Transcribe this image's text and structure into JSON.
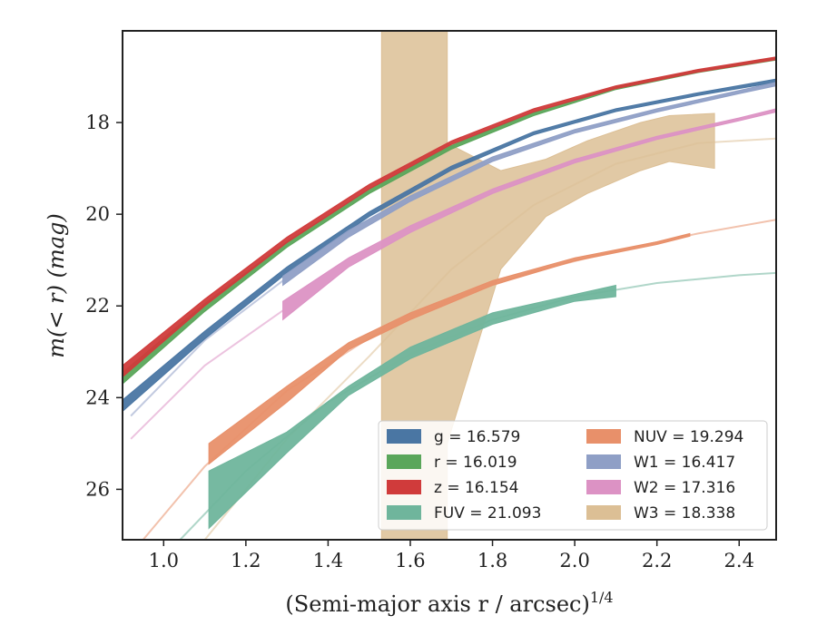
{
  "chart_data": {
    "type": "line",
    "xlabel": "(Semi-major axis r / arcsec)",
    "xlabel_sup": "1/4",
    "ylabel": "m(< r) (mag)",
    "xlim": [
      0.9,
      2.49
    ],
    "ylim": [
      27.1,
      16.0
    ],
    "y_inverted": true,
    "x_ticks": [
      1.0,
      1.2,
      1.4,
      1.6,
      1.8,
      2.0,
      2.2,
      2.4
    ],
    "x_tick_labels": [
      "1.0",
      "1.2",
      "1.4",
      "1.6",
      "1.8",
      "2.0",
      "2.2",
      "2.4"
    ],
    "y_ticks": [
      18,
      20,
      22,
      24,
      26
    ],
    "y_tick_labels": [
      "18",
      "20",
      "22",
      "24",
      "26"
    ],
    "grid": false,
    "legend_position": "lower-right",
    "legend_columns": 2,
    "series": [
      {
        "name": "g = 16.579",
        "color": "#4a76a3",
        "band": {
          "x": [
            0.9,
            1.1,
            1.3,
            1.5,
            1.7,
            1.9,
            2.1,
            2.3,
            2.49
          ],
          "y_top": [
            24.05,
            22.55,
            21.15,
            19.95,
            18.95,
            18.2,
            17.7,
            17.35,
            17.05
          ],
          "y_bottom": [
            24.3,
            22.72,
            21.28,
            20.05,
            19.04,
            18.27,
            17.76,
            17.41,
            17.12
          ]
        }
      },
      {
        "name": "r = 16.019",
        "color": "#5aa65a",
        "band": {
          "x": [
            0.9,
            1.1,
            1.3,
            1.5,
            1.7,
            1.9,
            2.1,
            2.3,
            2.49
          ],
          "y_top": [
            23.45,
            21.95,
            20.6,
            19.45,
            18.5,
            17.78,
            17.22,
            16.85,
            16.58
          ],
          "y_bottom": [
            23.7,
            22.12,
            20.72,
            19.55,
            18.58,
            17.85,
            17.28,
            16.91,
            16.64
          ]
        }
      },
      {
        "name": "z = 16.154",
        "color": "#d03b3b",
        "band": {
          "x": [
            0.9,
            1.1,
            1.3,
            1.5,
            1.7,
            1.9,
            2.1,
            2.3,
            2.49
          ],
          "y_top": [
            23.3,
            21.85,
            20.5,
            19.35,
            18.4,
            17.7,
            17.2,
            16.84,
            16.57
          ],
          "y_bottom": [
            23.55,
            22.0,
            20.62,
            19.45,
            18.48,
            17.77,
            17.26,
            16.9,
            16.63
          ]
        }
      },
      {
        "name": "FUV = 21.093",
        "color": "#6fb59c",
        "band": {
          "x": [
            1.11,
            1.3,
            1.45,
            1.6,
            1.8,
            2.0,
            2.1
          ],
          "y_top": [
            25.6,
            24.75,
            23.75,
            22.9,
            22.15,
            21.75,
            21.55
          ],
          "y_bottom": [
            26.85,
            25.2,
            23.95,
            23.15,
            22.4,
            21.9,
            21.8
          ]
        },
        "fit": {
          "x": [
            1.04,
            1.2,
            1.4,
            1.6,
            1.8,
            2.0,
            2.2,
            2.4,
            2.49
          ],
          "y": [
            27.1,
            25.6,
            24.1,
            23.05,
            22.3,
            21.8,
            21.5,
            21.33,
            21.28
          ]
        }
      },
      {
        "name": "NUV = 19.294",
        "color": "#e8906a",
        "band": {
          "x": [
            1.11,
            1.3,
            1.45,
            1.6,
            1.8,
            2.0,
            2.2,
            2.28
          ],
          "y_top": [
            25.0,
            23.75,
            22.8,
            22.15,
            21.45,
            20.95,
            20.6,
            20.42
          ],
          "y_bottom": [
            25.45,
            24.1,
            22.95,
            22.3,
            21.55,
            21.02,
            20.66,
            20.48
          ]
        },
        "fit": {
          "x": [
            0.95,
            1.1,
            1.3,
            1.5,
            1.7,
            1.9,
            2.1,
            2.3,
            2.49
          ],
          "y": [
            27.1,
            25.5,
            23.85,
            22.7,
            21.85,
            21.25,
            20.8,
            20.42,
            20.12
          ]
        }
      },
      {
        "name": "W1 = 16.417",
        "color": "#8f9fc6",
        "band": {
          "x": [
            1.29,
            1.45,
            1.6,
            1.8,
            2.0,
            2.2,
            2.4,
            2.49
          ],
          "y_top": [
            21.35,
            20.35,
            19.6,
            18.75,
            18.15,
            17.7,
            17.3,
            17.12
          ],
          "y_bottom": [
            21.55,
            20.5,
            19.72,
            18.85,
            18.23,
            17.77,
            17.37,
            17.2
          ]
        },
        "fit": {
          "x": [
            0.92,
            1.1,
            1.29
          ],
          "y": [
            24.4,
            22.75,
            21.45
          ]
        }
      },
      {
        "name": "W2 = 17.316",
        "color": "#dc92c4",
        "band": {
          "x": [
            1.29,
            1.45,
            1.6,
            1.8,
            2.0,
            2.2,
            2.4,
            2.49
          ],
          "y_top": [
            21.9,
            20.95,
            20.25,
            19.45,
            18.8,
            18.3,
            17.9,
            17.7
          ],
          "y_bottom": [
            22.3,
            21.15,
            20.4,
            19.55,
            18.88,
            18.37,
            17.96,
            17.77
          ]
        },
        "fit": {
          "x": [
            0.92,
            1.1,
            1.29
          ],
          "y": [
            24.9,
            23.3,
            22.1
          ]
        }
      },
      {
        "name": "W3 = 18.338",
        "color": "#dcbf95",
        "band": {
          "x": [
            1.53,
            1.53,
            1.69,
            1.69,
            1.82,
            1.93,
            2.03,
            2.16,
            2.23,
            2.34
          ],
          "y_top": [
            16.0,
            16.0,
            16.0,
            18.45,
            19.05,
            18.8,
            18.4,
            18.0,
            17.85,
            17.8
          ],
          "y_bottom": [
            27.1,
            27.1,
            27.1,
            25.0,
            21.2,
            20.05,
            19.55,
            19.05,
            18.85,
            19.0
          ]
        },
        "fit": {
          "x": [
            1.1,
            1.3,
            1.5,
            1.7,
            1.9,
            2.1,
            2.3,
            2.49
          ],
          "y": [
            27.1,
            24.9,
            23.1,
            21.2,
            19.8,
            18.9,
            18.45,
            18.35
          ]
        }
      }
    ]
  }
}
